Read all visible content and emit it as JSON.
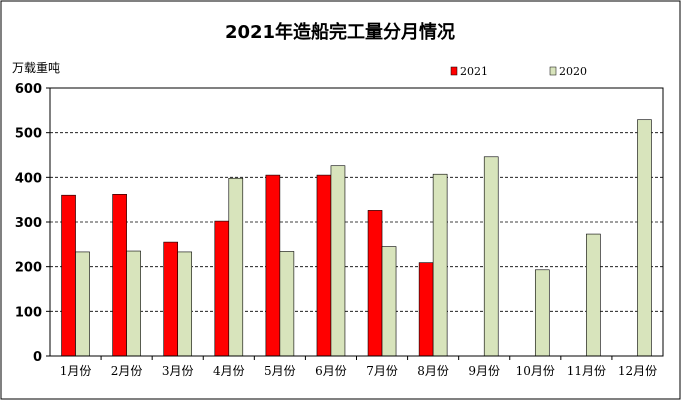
{
  "chart_data": {
    "type": "bar",
    "title": "2021年造船完工量分月情况",
    "ylabel": "万载重吨",
    "xlabel": "",
    "categories": [
      "1月份",
      "2月份",
      "3月份",
      "4月份",
      "5月份",
      "6月份",
      "7月份",
      "8月份",
      "9月份",
      "10月份",
      "11月份",
      "12月份"
    ],
    "series": [
      {
        "name": "2021",
        "color": "#ff0000",
        "values": [
          360,
          362,
          255,
          302,
          405,
          405,
          326,
          209,
          null,
          null,
          null,
          null
        ]
      },
      {
        "name": "2020",
        "color": "#d8e4bc",
        "values": [
          233,
          235,
          233,
          398,
          234,
          426,
          245,
          407,
          446,
          193,
          273,
          529
        ]
      }
    ],
    "ylim": [
      0,
      600
    ],
    "yticks": [
      0,
      100,
      200,
      300,
      400,
      500,
      600
    ],
    "grid": true,
    "legend_position": "top-right"
  }
}
